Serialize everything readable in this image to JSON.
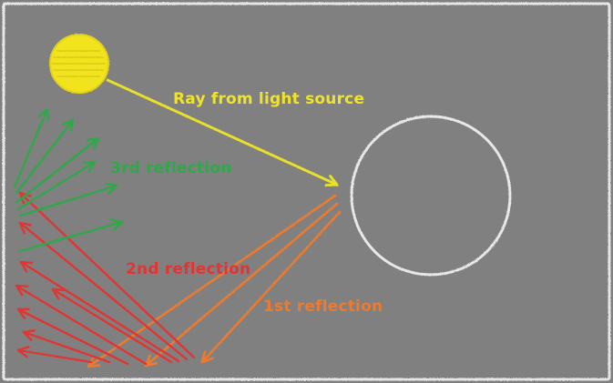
{
  "labels": {
    "ray": "Ray from light source",
    "third_reflection": "3rd reflection",
    "second_reflection": "2nd reflection",
    "first_reflection": "1st reflection"
  },
  "colors": {
    "background": "#808080",
    "border": "#e6e6e6",
    "light_source": "#f2e41e",
    "ray": "#e8e02a",
    "object_circle": "#e8e8e8",
    "first_reflection": "#ee7a2e",
    "second_reflection": "#e03535",
    "third_reflection": "#2fa84a"
  },
  "icons": {
    "light_source": "sun-icon",
    "object": "circle-object-icon"
  }
}
